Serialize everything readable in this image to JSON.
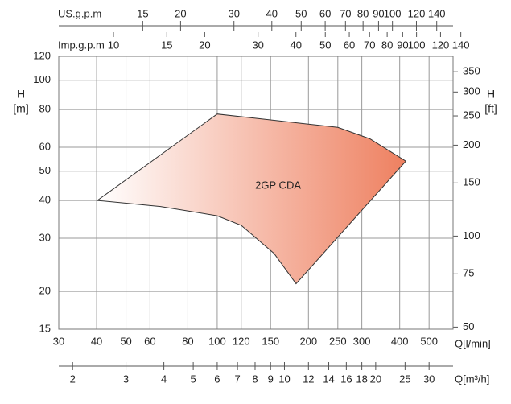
{
  "chart_data": {
    "type": "area",
    "series": [
      {
        "name": "2GP CDA",
        "color": "#ee8060",
        "x": [
          40.2,
          100,
          144,
          250,
          319,
          419,
          182,
          154,
          120,
          100,
          65
        ],
        "values": [
          40,
          77.3,
          74.3,
          69.8,
          64,
          54,
          21.2,
          26.7,
          33.1,
          35.6,
          38.2
        ]
      }
    ],
    "xlabel": "Q[l/min]",
    "ylabel": "H",
    "yunit": "[m]",
    "y2label": "H",
    "y2unit": "[ft]",
    "xlim": [
      30,
      600
    ],
    "xticks": [
      30,
      40,
      50,
      60,
      80,
      100,
      120,
      150,
      200,
      250,
      300,
      400,
      500
    ],
    "ylim": [
      15,
      120
    ],
    "yticks": [
      15,
      20,
      30,
      40,
      50,
      60,
      80,
      100,
      120
    ],
    "y2lim": [
      49.21,
      393.7
    ],
    "y2ticks": [
      50,
      75,
      100,
      150,
      200,
      250,
      300,
      350
    ],
    "log_x": true,
    "log_y": true,
    "grid": true,
    "secondary_x_axes": [
      {
        "position": "top",
        "label": "US.g.p.m",
        "xlim": [
          7.926,
          158.5
        ],
        "xticks": [
          15,
          20,
          30,
          40,
          50,
          60,
          70,
          80,
          90,
          100,
          120,
          140
        ]
      },
      {
        "position": "top",
        "label": "Imp.g.p.m",
        "xlim": [
          6.599,
          131.98
        ],
        "xticks": [
          10,
          15,
          20,
          30,
          40,
          50,
          60,
          70,
          80,
          90,
          100,
          120,
          140
        ]
      },
      {
        "position": "bottom",
        "label": "Q[m³/h]",
        "xlim": [
          1.8,
          36
        ],
        "xticks": [
          2,
          3,
          4,
          5,
          6,
          7,
          8,
          9,
          10,
          12,
          14,
          16,
          18,
          20,
          25,
          30
        ]
      }
    ]
  }
}
